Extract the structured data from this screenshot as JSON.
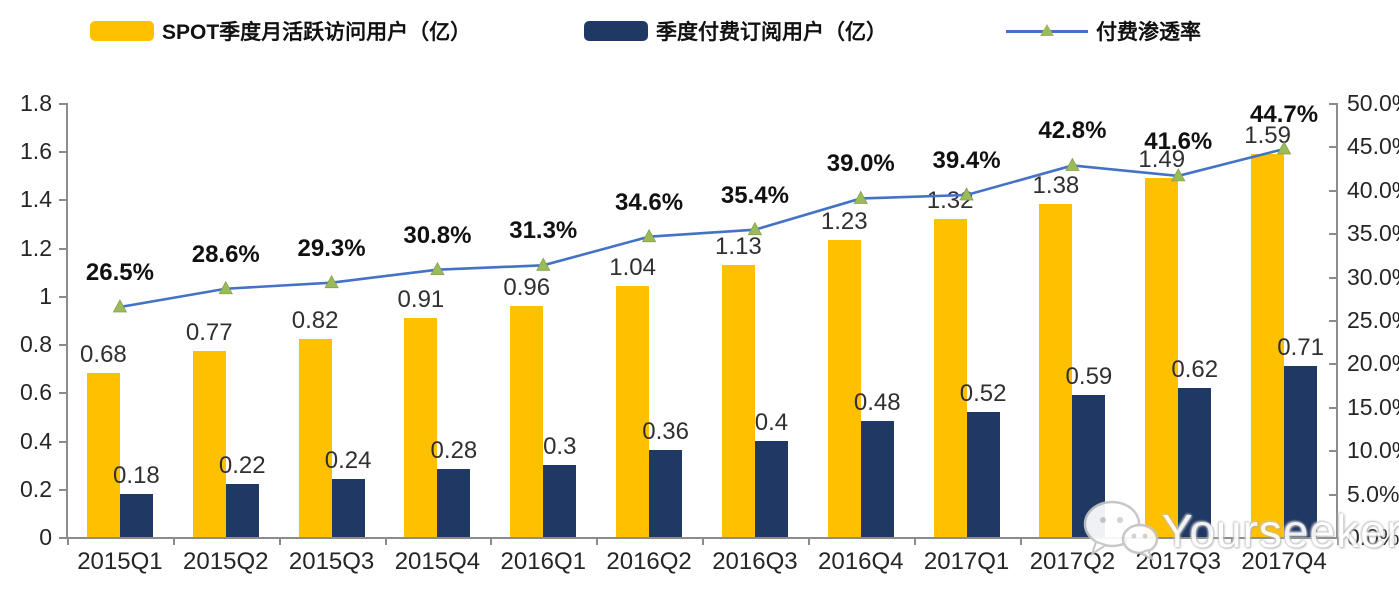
{
  "watermark": {
    "text": "Yourseeker",
    "icon": "wechat-icon"
  },
  "colors": {
    "mau_bar": "#FFC000",
    "subs_bar": "#1F3864",
    "line": "#4472C4",
    "marker": "#9BBB59",
    "axis": "#8c8c8c"
  },
  "chart_data": {
    "type": "bar",
    "subtype": "grouped-bar-with-line-combo",
    "categories": [
      "2015Q1",
      "2015Q2",
      "2015Q3",
      "2015Q4",
      "2016Q1",
      "2016Q2",
      "2016Q3",
      "2016Q4",
      "2017Q1",
      "2017Q2",
      "2017Q3",
      "2017Q4"
    ],
    "series": [
      {
        "name": "SPOT季度月活跃访问用户（亿）",
        "type": "bar",
        "axis": "left",
        "color": "#FFC000",
        "values": [
          0.68,
          0.77,
          0.82,
          0.91,
          0.96,
          1.04,
          1.13,
          1.23,
          1.32,
          1.38,
          1.49,
          1.59
        ],
        "labels": [
          "0.68",
          "0.77",
          "0.82",
          "0.91",
          "0.96",
          "1.04",
          "1.13",
          "1.23",
          "1.32",
          "1.38",
          "1.49",
          "1.59"
        ]
      },
      {
        "name": "季度付费订阅用户（亿）",
        "type": "bar",
        "axis": "left",
        "color": "#1F3864",
        "values": [
          0.18,
          0.22,
          0.24,
          0.28,
          0.3,
          0.36,
          0.4,
          0.48,
          0.52,
          0.59,
          0.62,
          0.71
        ],
        "labels": [
          "0.18",
          "0.22",
          "0.24",
          "0.28",
          "0.3",
          "0.36",
          "0.4",
          "0.48",
          "0.52",
          "0.59",
          "0.62",
          "0.71"
        ]
      },
      {
        "name": "付费渗透率",
        "type": "line",
        "axis": "right",
        "color": "#4472C4",
        "marker_color": "#9BBB59",
        "values": [
          26.5,
          28.6,
          29.3,
          30.8,
          31.3,
          34.6,
          35.4,
          39.0,
          39.4,
          42.8,
          41.6,
          44.7
        ],
        "labels": [
          "26.5%",
          "28.6%",
          "29.3%",
          "30.8%",
          "31.3%",
          "34.6%",
          "35.4%",
          "39.0%",
          "39.4%",
          "42.8%",
          "41.6%",
          "44.7%"
        ]
      }
    ],
    "left_axis": {
      "min": 0,
      "max": 1.8,
      "step": 0.2,
      "ticks": [
        "0",
        "0.2",
        "0.4",
        "0.6",
        "0.8",
        "1",
        "1.2",
        "1.4",
        "1.6",
        "1.8"
      ]
    },
    "right_axis": {
      "min": 0,
      "max": 50,
      "step": 5,
      "ticks": [
        "0.0%",
        "5.0%",
        "10.0%",
        "15.0%",
        "20.0%",
        "25.0%",
        "30.0%",
        "35.0%",
        "40.0%",
        "45.0%",
        "50.0%"
      ]
    },
    "grid": false,
    "legend_position": "top"
  }
}
